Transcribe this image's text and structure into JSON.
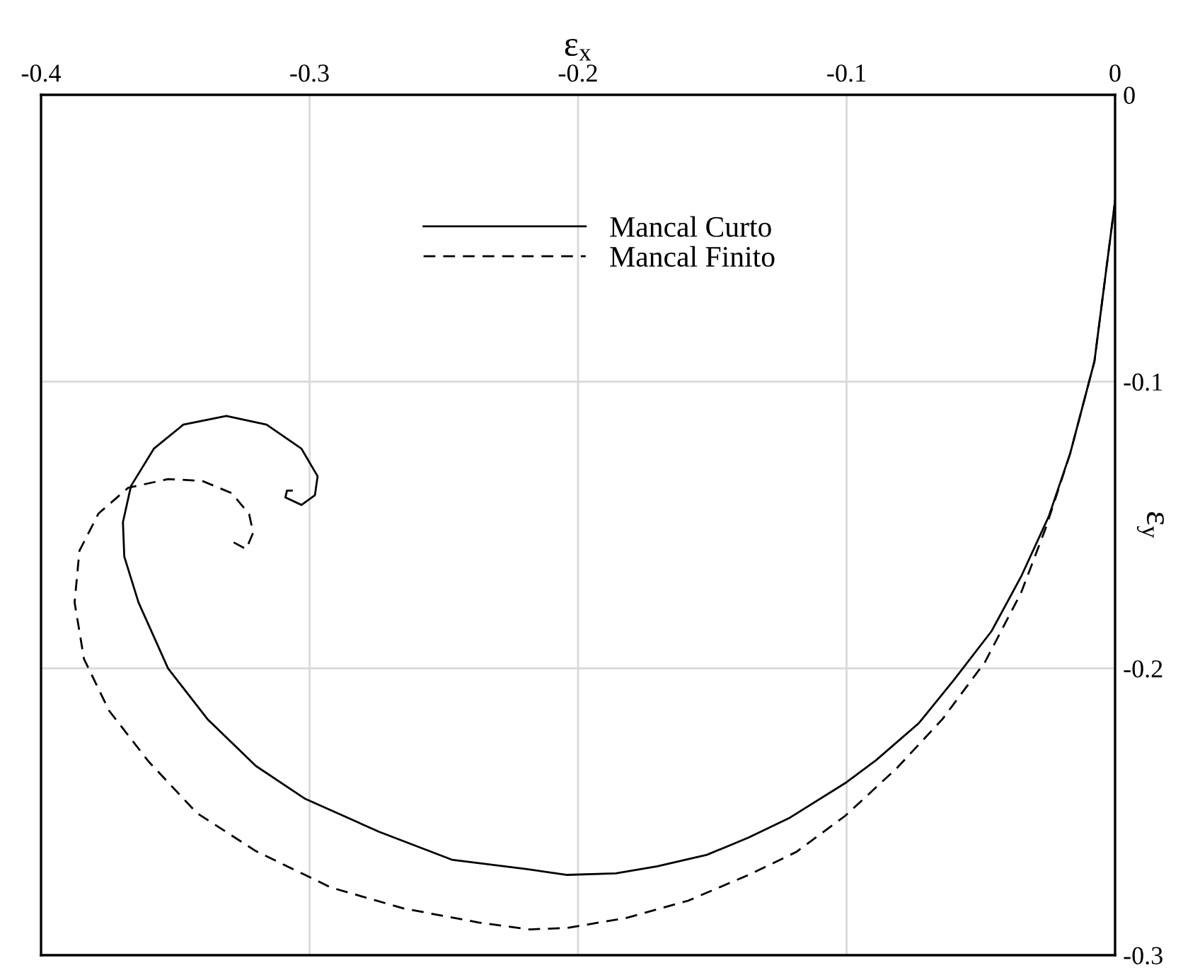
{
  "chart_data": {
    "type": "line",
    "xlabel": "ε$_{x}$",
    "ylabel": "ε$_{y}$",
    "xlim": [
      -0.4,
      0
    ],
    "ylim": [
      -0.3,
      0
    ],
    "xticks": [
      -0.4,
      -0.3,
      -0.2,
      -0.1,
      0
    ],
    "yticks": [
      -0.3,
      -0.2,
      -0.1,
      0
    ],
    "grid": true,
    "legend": "top",
    "series": [
      {
        "name": "Mancal Curto",
        "color": "#000000",
        "line_style": "solid",
        "x": [
          0,
          -0.0077,
          -0.0167,
          -0.0247,
          -0.035,
          -0.046,
          -0.06,
          -0.073,
          -0.089,
          -0.1005,
          -0.121,
          -0.1365,
          -0.152,
          -0.1705,
          -0.186,
          -0.204,
          -0.219,
          -0.247,
          -0.274,
          -0.3016,
          -0.32,
          -0.338,
          -0.3527,
          -0.3637,
          -0.369,
          -0.3695,
          -0.3665,
          -0.358,
          -0.347,
          -0.331,
          -0.316,
          -0.303,
          -0.297,
          -0.298,
          -0.303,
          -0.309,
          -0.3084,
          -0.3066
        ],
        "values": [
          -0.037,
          -0.093,
          -0.125,
          -0.147,
          -0.168,
          -0.187,
          -0.204,
          -0.219,
          -0.232,
          -0.24,
          -0.252,
          -0.259,
          -0.265,
          -0.269,
          -0.2715,
          -0.272,
          -0.27,
          -0.2667,
          -0.257,
          -0.2455,
          -0.234,
          -0.2177,
          -0.2,
          -0.177,
          -0.161,
          -0.149,
          -0.1364,
          -0.1234,
          -0.115,
          -0.112,
          -0.115,
          -0.1234,
          -0.133,
          -0.1396,
          -0.143,
          -0.1404,
          -0.138,
          -0.138
        ]
      },
      {
        "name": "Mancal Finito",
        "color": "#000000",
        "line_style": "dashed",
        "x": [
          0,
          -0.0077,
          -0.0167,
          -0.0258,
          -0.035,
          -0.0484,
          -0.0643,
          -0.0813,
          -0.1005,
          -0.1187,
          -0.1365,
          -0.159,
          -0.182,
          -0.204,
          -0.218,
          -0.237,
          -0.265,
          -0.292,
          -0.32,
          -0.342,
          -0.36,
          -0.3747,
          -0.384,
          -0.3875,
          -0.3857,
          -0.3786,
          -0.3675,
          -0.3527,
          -0.34,
          -0.329,
          -0.3225,
          -0.321,
          -0.3236,
          -0.329
        ],
        "values": [
          -0.037,
          -0.093,
          -0.125,
          -0.151,
          -0.1736,
          -0.1977,
          -0.2177,
          -0.2348,
          -0.2514,
          -0.264,
          -0.272,
          -0.281,
          -0.287,
          -0.2905,
          -0.291,
          -0.2886,
          -0.2837,
          -0.2764,
          -0.2637,
          -0.2504,
          -0.2324,
          -0.2147,
          -0.1967,
          -0.177,
          -0.159,
          -0.146,
          -0.137,
          -0.134,
          -0.1346,
          -0.1389,
          -0.1462,
          -0.1527,
          -0.1584,
          -0.1557
        ]
      }
    ]
  }
}
